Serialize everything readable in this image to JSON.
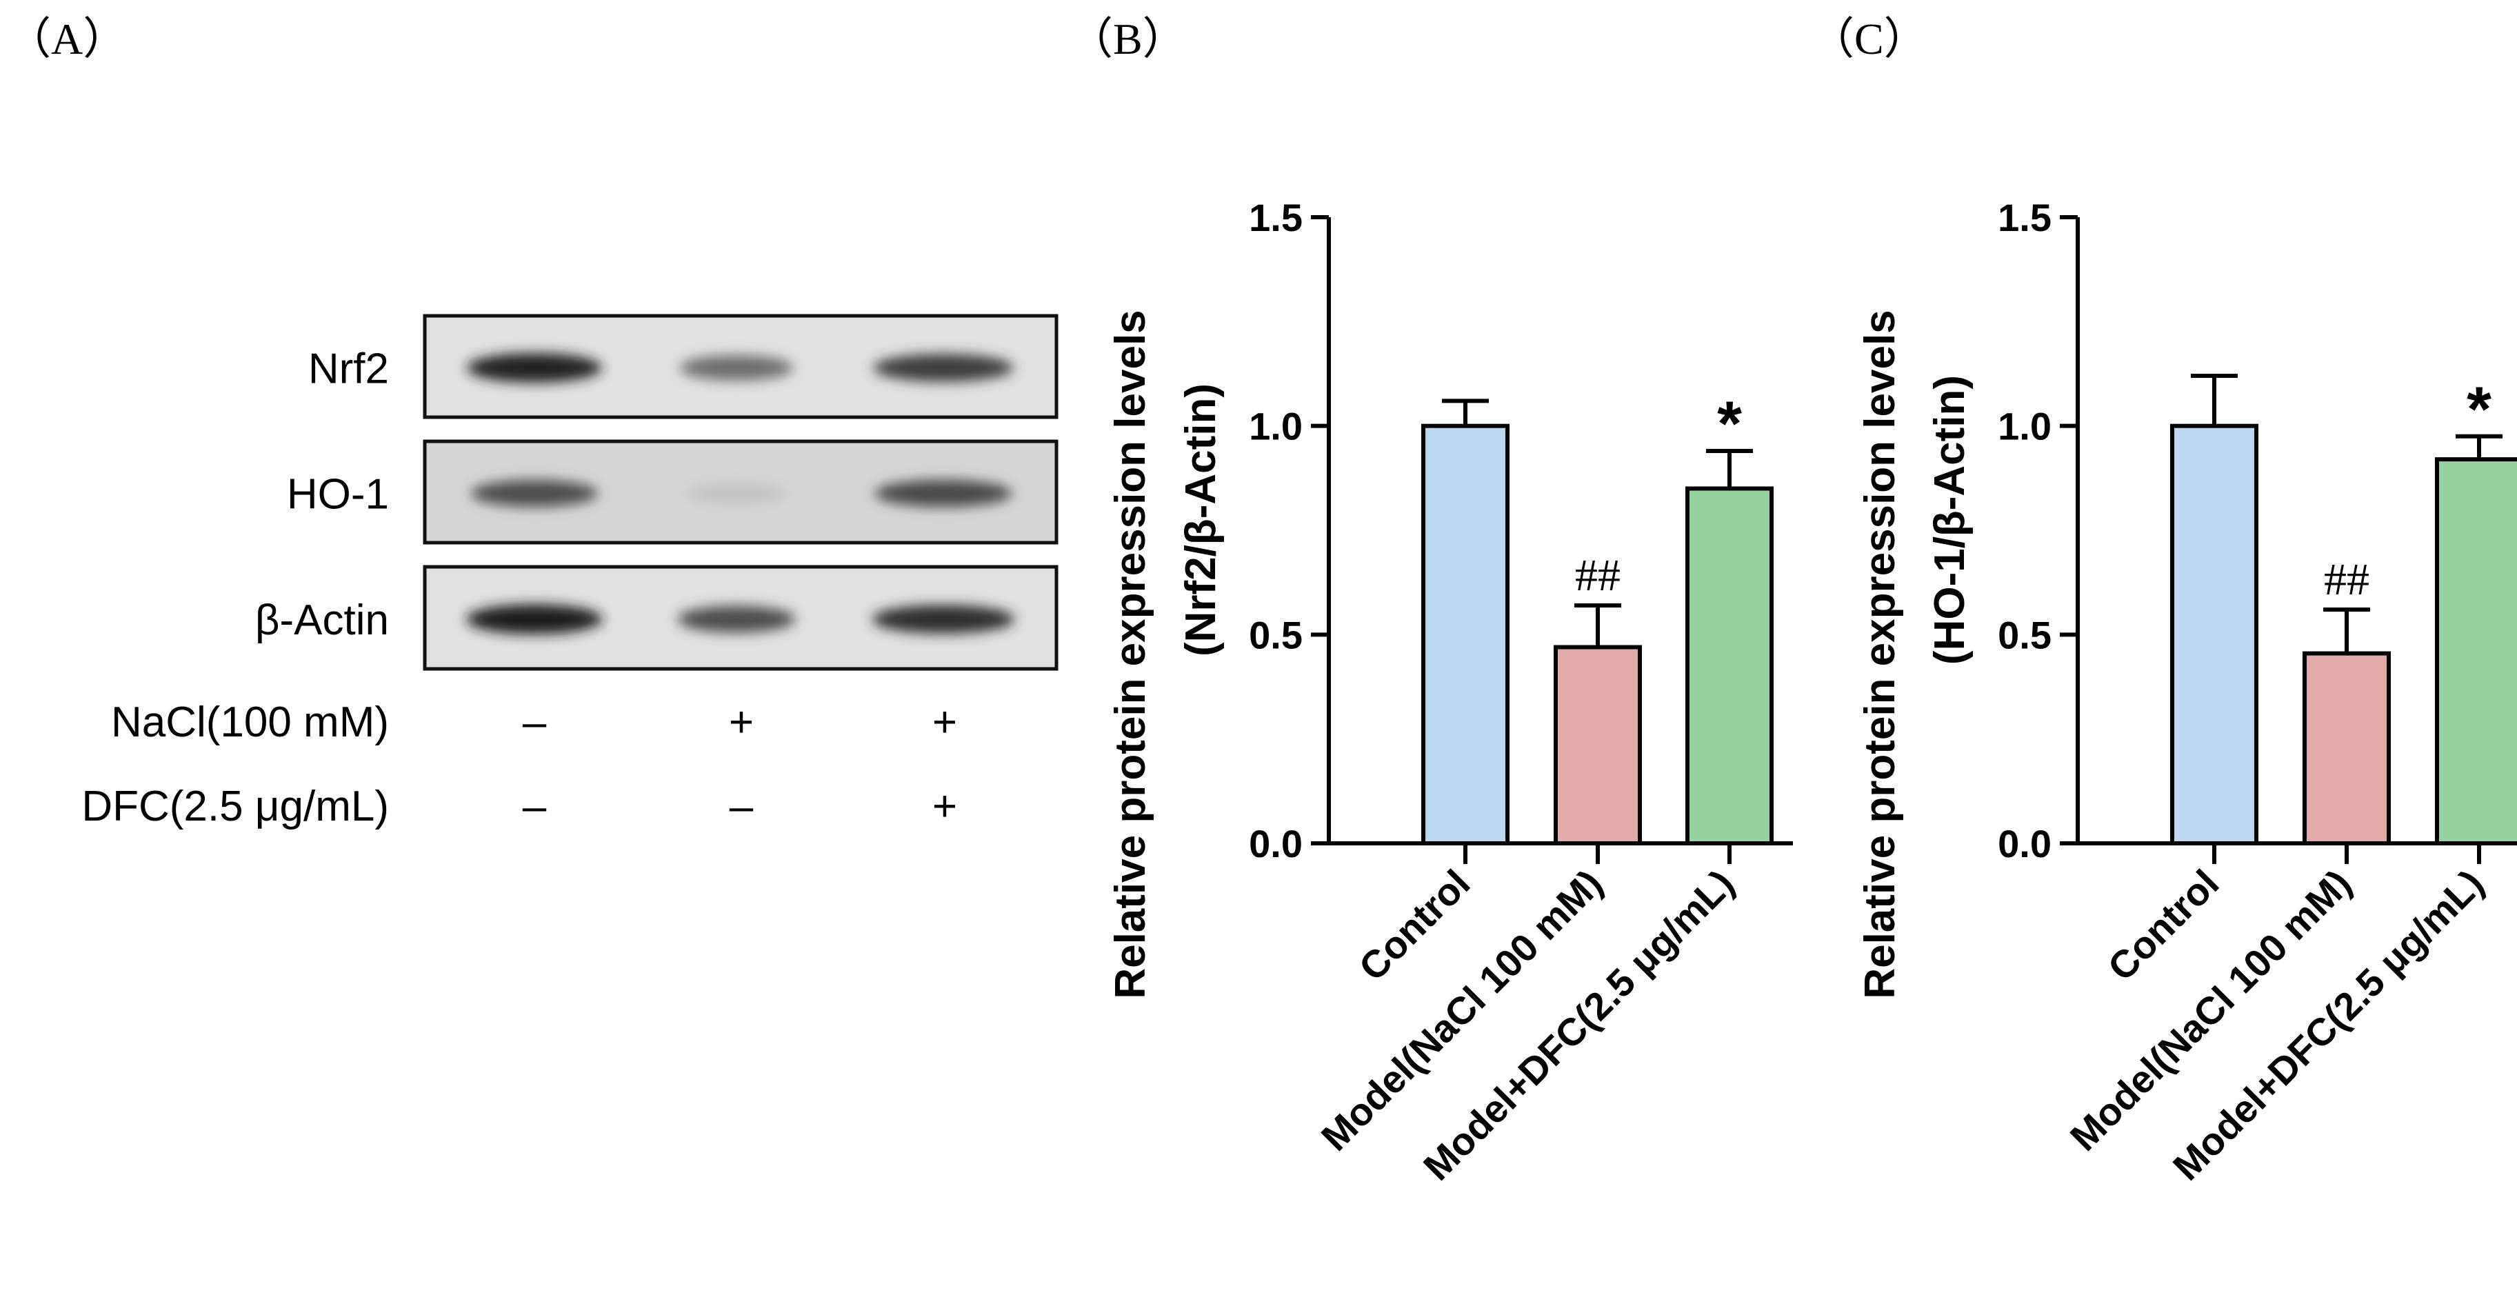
{
  "panels": {
    "a": "（A）",
    "b": "（B）",
    "c": "（C）"
  },
  "blot": {
    "rows": [
      {
        "label": "Nrf2",
        "bands": [
          0.92,
          0.55,
          0.78
        ]
      },
      {
        "label": "HO-1",
        "bands": [
          0.7,
          0.15,
          0.72
        ]
      },
      {
        "label": "β-Actin",
        "bands": [
          0.95,
          0.7,
          0.85
        ]
      }
    ],
    "treatments": [
      {
        "label": "NaCl(100 mM)",
        "signs": [
          "–",
          "+",
          "+"
        ]
      },
      {
        "label": "DFC(2.5 μg/mL)",
        "signs": [
          "–",
          "–",
          "+"
        ]
      }
    ]
  },
  "chart_data": [
    {
      "type": "bar",
      "categories": [
        "Control",
        "Model(NaCl 100 mM)",
        "Model+DFC(2.5 μg/mL)"
      ],
      "values": [
        1.0,
        0.47,
        0.85
      ],
      "errors": [
        0.06,
        0.1,
        0.09
      ],
      "annotations": [
        "",
        "##",
        "*"
      ],
      "colors": [
        "#bcd7f0",
        "#e3aaaa",
        "#95d2a0"
      ],
      "ylabel_line1": "Relative protein expression levels",
      "ylabel_line2": "(Nrf2/β-Actin)",
      "ylim": [
        0,
        1.5
      ],
      "yticks": [
        0.0,
        0.5,
        1.0,
        1.5
      ],
      "ytick_labels": [
        "0.0",
        "0.5",
        "1.0",
        "1.5"
      ]
    },
    {
      "type": "bar",
      "categories": [
        "Control",
        "Model(NaCl 100 mM)",
        "Model+DFC(2.5 μg/mL)"
      ],
      "values": [
        1.0,
        0.455,
        0.92
      ],
      "errors": [
        0.12,
        0.105,
        0.055
      ],
      "annotations": [
        "",
        "##",
        "*"
      ],
      "colors": [
        "#bcd7f0",
        "#e3aaaa",
        "#95d2a0"
      ],
      "ylabel_line1": "Relative protein expression levels",
      "ylabel_line2": "(HO-1/β-Actin)",
      "ylim": [
        0,
        1.5
      ],
      "yticks": [
        0.0,
        0.5,
        1.0,
        1.5
      ],
      "ytick_labels": [
        "0.0",
        "0.5",
        "1.0",
        "1.5"
      ]
    }
  ]
}
